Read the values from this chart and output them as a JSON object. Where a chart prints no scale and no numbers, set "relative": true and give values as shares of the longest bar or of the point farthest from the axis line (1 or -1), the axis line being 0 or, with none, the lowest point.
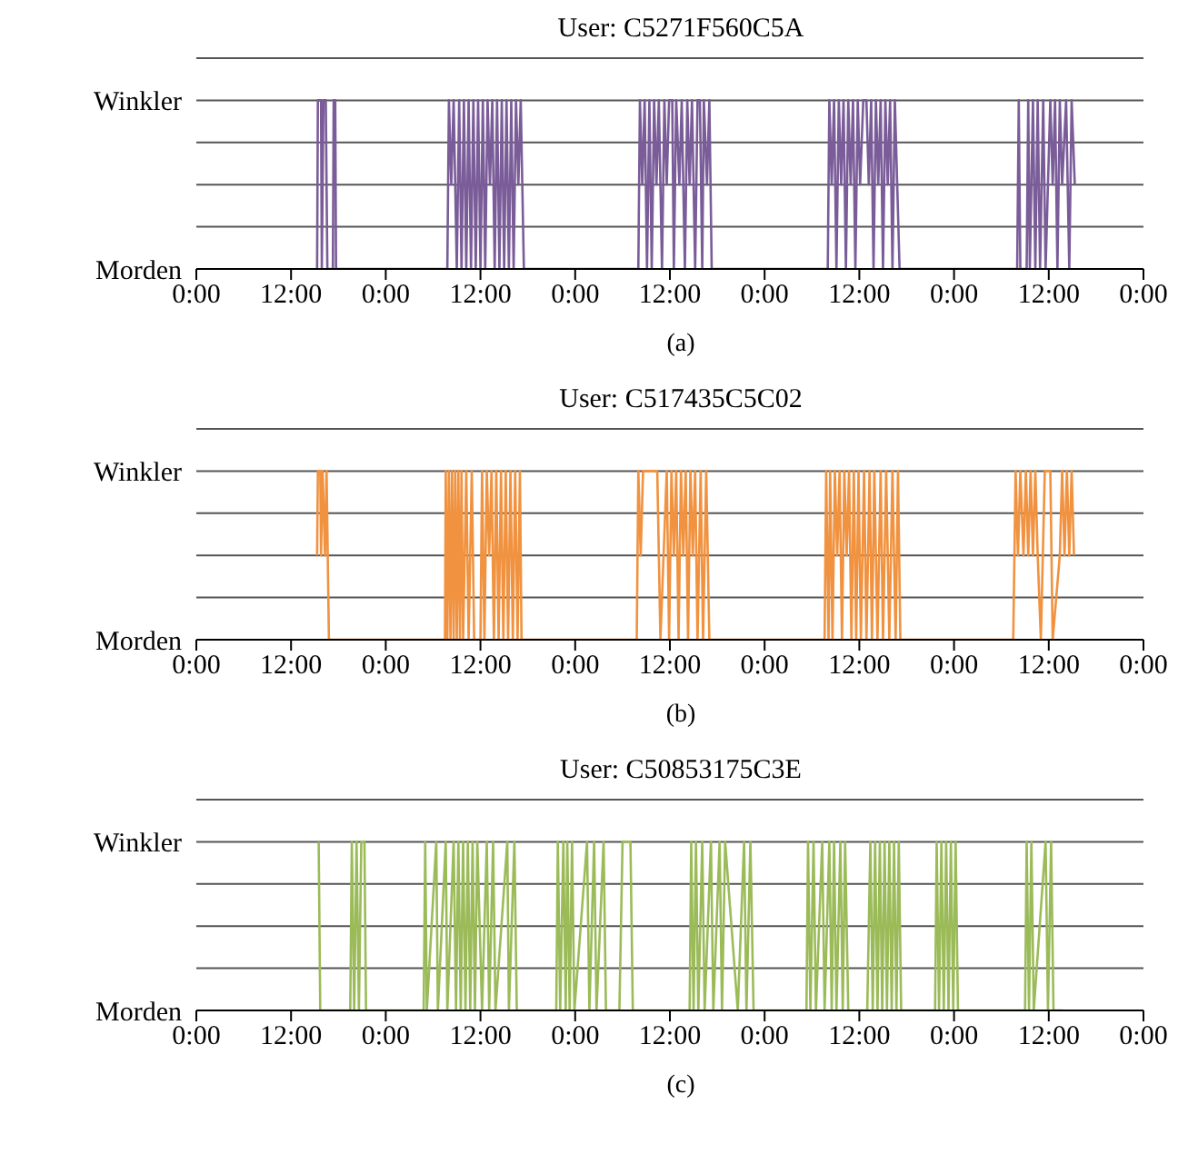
{
  "chart_data": [
    {
      "type": "line",
      "title": "User: C5271F560C5A",
      "relative": true,
      "annotations": [
        "Winkler",
        "Morden",
        "(a)"
      ],
      "color": "#7a5c99",
      "grid": "y",
      "legend": false,
      "marker": "none",
      "line_style": "solid",
      "xlim": [
        "--01-01T00:00",
        "--01-06T00:00"
      ],
      "xticks": [
        {
          "value": "--01-01T00:00",
          "label": "0:00"
        },
        {
          "value": "--01-01T12:00",
          "label": "12:00"
        },
        {
          "value": "--01-02T00:00",
          "label": "0:00"
        },
        {
          "value": "--01-02T12:00",
          "label": "12:00"
        },
        {
          "value": "--01-03T00:00",
          "label": "0:00"
        },
        {
          "value": "--01-03T12:00",
          "label": "12:00"
        },
        {
          "value": "--01-04T00:00",
          "label": "0:00"
        },
        {
          "value": "--01-04T12:00",
          "label": "12:00"
        },
        {
          "value": "--01-05T00:00",
          "label": "0:00"
        },
        {
          "value": "--01-05T12:00",
          "label": "12:00"
        },
        {
          "value": "--01-06T00:00",
          "label": "0:00"
        }
      ],
      "x": [
        "--01-01T15:18",
        "--01-01T15:24",
        "--01-01T15:48",
        "--01-01T15:54",
        "--01-01T16:06",
        "--01-01T16:24",
        "--01-01T16:36",
        "--01-01T17:18",
        "--01-01T17:24",
        "--01-01T17:36",
        "--01-01T17:42",
        "--01-02T07:48",
        "--01-02T08:00",
        "--01-02T08:18",
        "--01-02T08:36",
        "--01-02T09:00",
        "--01-02T09:18",
        "--01-02T09:36",
        "--01-02T09:54",
        "--01-02T10:12",
        "--01-02T10:30",
        "--01-02T10:48",
        "--01-02T11:06",
        "--01-02T11:24",
        "--01-02T11:42",
        "--01-02T12:00",
        "--01-02T12:18",
        "--01-02T12:36",
        "--01-02T12:54",
        "--01-02T13:12",
        "--01-02T13:30",
        "--01-02T13:48",
        "--01-02T14:06",
        "--01-02T14:24",
        "--01-02T14:42",
        "--01-02T15:00",
        "--01-02T15:18",
        "--01-02T15:36",
        "--01-02T15:54",
        "--01-02T16:12",
        "--01-02T16:30",
        "--01-02T16:48",
        "--01-02T17:06",
        "--01-02T17:30",
        "--01-03T08:00",
        "--01-03T08:12",
        "--01-03T08:30",
        "--01-03T08:48",
        "--01-03T09:06",
        "--01-03T09:24",
        "--01-03T09:42",
        "--01-03T10:00",
        "--01-03T10:18",
        "--01-03T10:36",
        "--01-03T11:00",
        "--01-03T11:18",
        "--01-03T11:36",
        "--01-03T11:54",
        "--01-03T12:18",
        "--01-03T12:30",
        "--01-03T12:48",
        "--01-03T13:12",
        "--01-03T13:30",
        "--01-03T13:54",
        "--01-03T14:12",
        "--01-03T14:30",
        "--01-03T14:48",
        "--01-03T15:12",
        "--01-03T15:30",
        "--01-03T15:48",
        "--01-03T16:06",
        "--01-03T16:18",
        "--01-03T16:42",
        "--01-03T17:00",
        "--01-03T17:18",
        "--01-04T08:00",
        "--01-04T08:12",
        "--01-04T08:30",
        "--01-04T08:48",
        "--01-04T09:06",
        "--01-04T09:24",
        "--01-04T09:42",
        "--01-04T10:00",
        "--01-04T10:18",
        "--01-04T10:36",
        "--01-04T10:54",
        "--01-04T11:12",
        "--01-04T11:30",
        "--01-04T11:48",
        "--01-04T12:06",
        "--01-04T12:30",
        "--01-04T12:54",
        "--01-04T13:12",
        "--01-04T13:30",
        "--01-04T13:48",
        "--01-04T14:06",
        "--01-04T14:24",
        "--01-04T14:42",
        "--01-04T15:00",
        "--01-04T15:18",
        "--01-04T15:36",
        "--01-04T15:54",
        "--01-04T16:12",
        "--01-04T16:30",
        "--01-04T16:48",
        "--01-04T17:06",
        "--01-05T08:00",
        "--01-05T08:12",
        "--01-05T08:24",
        "--01-05T09:12",
        "--01-05T09:24",
        "--01-05T09:36",
        "--01-05T10:00",
        "--01-05T10:18",
        "--01-05T10:36",
        "--01-05T10:54",
        "--01-05T11:18",
        "--01-05T11:36",
        "--01-05T12:12",
        "--01-05T12:30",
        "--01-05T12:48",
        "--01-05T13:06",
        "--01-05T13:24",
        "--01-05T13:42",
        "--01-05T14:12",
        "--01-05T14:36",
        "--01-05T14:54",
        "--01-05T15:18"
      ],
      "values": [
        0,
        1,
        1,
        0,
        1,
        1,
        0,
        0,
        1,
        1,
        0,
        0,
        1,
        0.5,
        1,
        0,
        1,
        0,
        1,
        0,
        1,
        0,
        1,
        0,
        1,
        0,
        1,
        0,
        1,
        0.5,
        1,
        0,
        1,
        0,
        1,
        0,
        1,
        0,
        1,
        0,
        1,
        0.5,
        1,
        0,
        0,
        1,
        0.5,
        1,
        0,
        1,
        0,
        1,
        0.5,
        1,
        0,
        1,
        0.5,
        1,
        1,
        0,
        1,
        0.5,
        1,
        0,
        1,
        0.5,
        1,
        0,
        1,
        1,
        0,
        1,
        0.5,
        1,
        0,
        0,
        1,
        0.5,
        1,
        0,
        1,
        0.5,
        1,
        0,
        1,
        0.5,
        1,
        0,
        1,
        0.5,
        1,
        1,
        0.5,
        1,
        0,
        1,
        0.5,
        1,
        0,
        1,
        0.5,
        1,
        0,
        1,
        0.5,
        0,
        0,
        1,
        0,
        0,
        1,
        0,
        1,
        0,
        1,
        0,
        1,
        0,
        1,
        0.5,
        1,
        0,
        1,
        0.5,
        1,
        0,
        1,
        0.5
      ]
    },
    {
      "type": "line",
      "title": "User: C517435C5C02",
      "relative": true,
      "annotations": [
        "Winkler",
        "Morden",
        "(b)"
      ],
      "color": "#f0923f",
      "grid": "y",
      "legend": false,
      "marker": "none",
      "line_style": "solid",
      "xlim": [
        "--01-01T00:00",
        "--01-06T00:00"
      ],
      "xticks": [
        {
          "value": "--01-01T00:00",
          "label": "0:00"
        },
        {
          "value": "--01-01T12:00",
          "label": "12:00"
        },
        {
          "value": "--01-02T00:00",
          "label": "0:00"
        },
        {
          "value": "--01-02T12:00",
          "label": "12:00"
        },
        {
          "value": "--01-03T00:00",
          "label": "0:00"
        },
        {
          "value": "--01-03T12:00",
          "label": "12:00"
        },
        {
          "value": "--01-04T00:00",
          "label": "0:00"
        },
        {
          "value": "--01-04T12:00",
          "label": "12:00"
        },
        {
          "value": "--01-05T00:00",
          "label": "0:00"
        },
        {
          "value": "--01-05T12:00",
          "label": "12:00"
        },
        {
          "value": "--01-06T00:00",
          "label": "0:00"
        }
      ],
      "x": [
        "--01-01T15:18",
        "--01-01T15:24",
        "--01-01T15:42",
        "--01-01T15:48",
        "--01-01T16:00",
        "--01-01T16:18",
        "--01-01T16:30",
        "--01-01T16:48",
        "--01-02T07:30",
        "--01-02T07:36",
        "--01-02T07:48",
        "--01-02T08:00",
        "--01-02T08:12",
        "--01-02T08:24",
        "--01-02T08:36",
        "--01-02T08:48",
        "--01-02T09:00",
        "--01-02T09:12",
        "--01-02T09:24",
        "--01-02T09:36",
        "--01-02T09:48",
        "--01-02T10:12",
        "--01-02T10:30",
        "--01-02T10:54",
        "--01-02T11:12",
        "--01-02T12:00",
        "--01-02T12:12",
        "--01-02T12:30",
        "--01-02T12:48",
        "--01-02T13:06",
        "--01-02T13:24",
        "--01-02T13:42",
        "--01-02T14:00",
        "--01-02T14:18",
        "--01-02T14:36",
        "--01-02T14:54",
        "--01-02T15:12",
        "--01-02T15:30",
        "--01-02T15:48",
        "--01-02T16:06",
        "--01-02T16:24",
        "--01-02T16:42",
        "--01-02T17:00",
        "--01-02T17:12",
        "--01-03T07:48",
        "--01-03T08:00",
        "--01-03T08:18",
        "--01-03T08:36",
        "--01-03T09:00",
        "--01-03T10:24",
        "--01-03T10:48",
        "--01-03T11:36",
        "--01-03T11:54",
        "--01-03T12:12",
        "--01-03T12:30",
        "--01-03T12:48",
        "--01-03T13:06",
        "--01-03T13:24",
        "--01-03T13:42",
        "--01-03T14:00",
        "--01-03T14:18",
        "--01-03T14:36",
        "--01-03T14:54",
        "--01-03T15:12",
        "--01-03T15:30",
        "--01-03T15:54",
        "--01-03T16:12",
        "--01-03T16:36",
        "--01-03T17:00",
        "--01-04T07:36",
        "--01-04T07:48",
        "--01-04T08:06",
        "--01-04T08:18",
        "--01-04T08:36",
        "--01-04T08:54",
        "--01-04T09:12",
        "--01-04T09:30",
        "--01-04T09:48",
        "--01-04T10:06",
        "--01-04T10:24",
        "--01-04T10:42",
        "--01-04T11:00",
        "--01-04T11:18",
        "--01-04T11:36",
        "--01-04T11:54",
        "--01-04T12:12",
        "--01-04T12:36",
        "--01-04T12:54",
        "--01-04T13:18",
        "--01-04T13:36",
        "--01-04T13:54",
        "--01-04T14:18",
        "--01-04T14:42",
        "--01-04T15:00",
        "--01-04T15:24",
        "--01-04T15:48",
        "--01-04T16:12",
        "--01-04T16:36",
        "--01-04T16:54",
        "--01-04T17:12",
        "--01-05T07:30",
        "--01-05T07:48",
        "--01-05T08:06",
        "--01-05T08:24",
        "--01-05T08:48",
        "--01-05T09:06",
        "--01-05T09:24",
        "--01-05T09:42",
        "--01-05T10:00",
        "--01-05T10:18",
        "--01-05T10:36",
        "--01-05T11:00",
        "--01-05T11:30",
        "--01-05T12:12",
        "--01-05T12:30",
        "--01-05T13:24",
        "--01-05T13:42",
        "--01-05T14:00",
        "--01-05T14:18",
        "--01-05T14:36",
        "--01-05T14:54",
        "--01-05T15:12"
      ],
      "values": [
        0.5,
        1,
        1,
        0.5,
        1,
        0.5,
        1,
        0,
        0,
        1,
        0,
        1,
        0,
        1,
        0,
        1,
        0,
        1,
        0,
        1,
        0,
        1,
        0,
        1,
        0,
        0,
        1,
        0,
        1,
        0.5,
        1,
        0,
        1,
        0,
        1,
        0,
        1,
        0,
        1,
        0,
        1,
        0,
        1,
        0,
        0,
        1,
        0.5,
        1,
        1,
        1,
        0,
        1,
        0,
        1,
        0.5,
        1,
        0,
        1,
        0.5,
        1,
        0,
        1,
        0.5,
        1,
        0,
        1,
        0,
        1,
        0,
        0,
        1,
        0,
        1,
        0,
        1,
        0.5,
        1,
        0,
        1,
        0.5,
        1,
        0,
        1,
        0,
        1,
        0,
        1,
        0,
        1,
        0,
        1,
        0,
        1,
        0,
        1,
        0,
        1,
        0,
        1,
        0,
        0,
        1,
        0.5,
        1,
        0.5,
        1,
        0.5,
        1,
        0.5,
        1,
        0.5,
        0,
        1,
        1,
        0,
        0.5,
        1,
        0.5,
        1,
        0.5,
        1,
        0.5
      ]
    },
    {
      "type": "line",
      "title": "User: C50853175C3E",
      "relative": true,
      "annotations": [
        "Winkler",
        "Morden",
        "(c)"
      ],
      "color": "#9bbb59",
      "grid": "y",
      "legend": false,
      "marker": "none",
      "line_style": "solid",
      "xlim": [
        "--01-01T00:00",
        "--01-06T00:00"
      ],
      "xticks": [
        {
          "value": "--01-01T00:00",
          "label": "0:00"
        },
        {
          "value": "--01-01T12:00",
          "label": "12:00"
        },
        {
          "value": "--01-02T00:00",
          "label": "0:00"
        },
        {
          "value": "--01-02T12:00",
          "label": "12:00"
        },
        {
          "value": "--01-03T00:00",
          "label": "0:00"
        },
        {
          "value": "--01-03T12:00",
          "label": "12:00"
        },
        {
          "value": "--01-04T00:00",
          "label": "0:00"
        },
        {
          "value": "--01-04T12:00",
          "label": "12:00"
        },
        {
          "value": "--01-05T00:00",
          "label": "0:00"
        },
        {
          "value": "--01-05T12:00",
          "label": "12:00"
        },
        {
          "value": "--01-06T00:00",
          "label": "0:00"
        }
      ],
      "x": [
        "--01-01T15:30",
        "--01-01T15:42",
        "--01-01T19:30",
        "--01-01T19:42",
        "--01-01T20:00",
        "--01-01T20:18",
        "--01-01T20:36",
        "--01-01T20:54",
        "--01-01T21:18",
        "--01-01T21:30",
        "--01-02T04:48",
        "--01-02T05:00",
        "--01-02T05:12",
        "--01-02T06:24",
        "--01-02T06:36",
        "--01-02T07:36",
        "--01-02T07:48",
        "--01-02T08:36",
        "--01-02T08:54",
        "--01-02T09:12",
        "--01-02T09:30",
        "--01-02T09:48",
        "--01-02T10:06",
        "--01-02T10:24",
        "--01-02T10:42",
        "--01-02T11:00",
        "--01-02T11:18",
        "--01-02T11:36",
        "--01-02T12:12",
        "--01-02T12:48",
        "--01-02T13:06",
        "--01-02T13:36",
        "--01-02T13:54",
        "--01-02T15:24",
        "--01-02T15:36",
        "--01-02T16:18",
        "--01-02T16:36",
        "--01-02T21:36",
        "--01-02T21:48",
        "--01-02T22:06",
        "--01-02T22:30",
        "--01-02T22:48",
        "--01-02T23:00",
        "--01-02T23:18",
        "--01-02T23:36",
        "--01-02T23:54",
        "--01-03T01:30",
        "--01-03T01:48",
        "--01-03T02:24",
        "--01-03T02:42",
        "--01-03T03:36",
        "--01-03T03:54",
        "--01-03T05:36",
        "--01-03T06:00",
        "--01-03T07:00",
        "--01-03T07:18",
        "--01-03T10:12",
        "--01-03T14:30",
        "--01-03T14:42",
        "--01-03T15:00",
        "--01-03T15:18",
        "--01-03T15:36",
        "--01-03T16:06",
        "--01-03T16:24",
        "--01-03T17:12",
        "--01-03T17:30",
        "--01-03T18:18",
        "--01-03T18:36",
        "--01-03T19:00",
        "--01-03T20:36",
        "--01-03T21:24",
        "--01-03T21:42",
        "--01-03T22:12",
        "--01-03T22:36",
        "--01-04T05:18",
        "--01-04T05:30",
        "--01-04T05:48",
        "--01-04T06:12",
        "--01-04T06:30",
        "--01-04T07:18",
        "--01-04T07:36",
        "--01-04T08:12",
        "--01-04T08:30",
        "--01-04T08:48",
        "--01-04T09:06",
        "--01-04T09:36",
        "--01-04T09:54",
        "--01-04T10:12",
        "--01-04T10:36",
        "--01-04T13:00",
        "--01-04T13:24",
        "--01-04T13:42",
        "--01-04T14:00",
        "--01-04T14:18",
        "--01-04T14:36",
        "--01-04T14:54",
        "--01-04T15:12",
        "--01-04T15:30",
        "--01-04T15:48",
        "--01-04T16:06",
        "--01-04T16:24",
        "--01-04T16:42",
        "--01-04T17:00",
        "--01-04T17:18",
        "--01-04T21:36",
        "--01-04T21:48",
        "--01-04T22:06",
        "--01-04T22:24",
        "--01-04T22:42",
        "--01-04T23:00",
        "--01-04T23:18",
        "--01-04T23:36",
        "--01-04T23:54",
        "--01-05T00:12",
        "--01-05T00:30",
        "--01-05T09:00",
        "--01-05T09:12",
        "--01-05T09:30",
        "--01-05T09:48",
        "--01-05T10:06",
        "--01-05T11:36",
        "--01-05T11:54",
        "--01-05T12:18",
        "--01-05T12:36",
        "--01-05T13:48"
      ],
      "values": [
        1,
        0,
        0,
        1,
        0,
        1,
        0,
        1,
        1,
        0,
        0,
        1,
        0,
        1,
        0,
        1,
        0,
        1,
        0,
        1,
        0,
        1,
        0,
        1,
        0,
        1,
        0,
        1,
        0,
        1,
        0,
        1,
        0,
        1,
        0,
        1,
        0,
        0,
        1,
        0,
        1,
        0,
        1,
        0,
        1,
        0,
        1,
        0,
        1,
        0,
        1,
        0,
        0,
        1,
        1,
        0,
        0,
        0,
        1,
        0,
        1,
        0,
        1,
        0,
        1,
        0,
        1,
        0,
        1,
        0,
        1,
        0,
        1,
        0,
        0,
        1,
        0,
        1,
        0,
        1,
        0,
        1,
        0,
        1,
        0,
        1,
        0,
        1,
        0,
        0,
        1,
        0,
        1,
        0,
        1,
        0,
        1,
        0,
        1,
        0,
        1,
        0,
        1,
        0,
        0,
        1,
        0,
        1,
        0,
        1,
        0,
        1,
        0,
        1,
        0,
        0,
        1,
        0,
        1,
        0,
        1,
        0,
        1,
        0,
        0
      ]
    }
  ]
}
